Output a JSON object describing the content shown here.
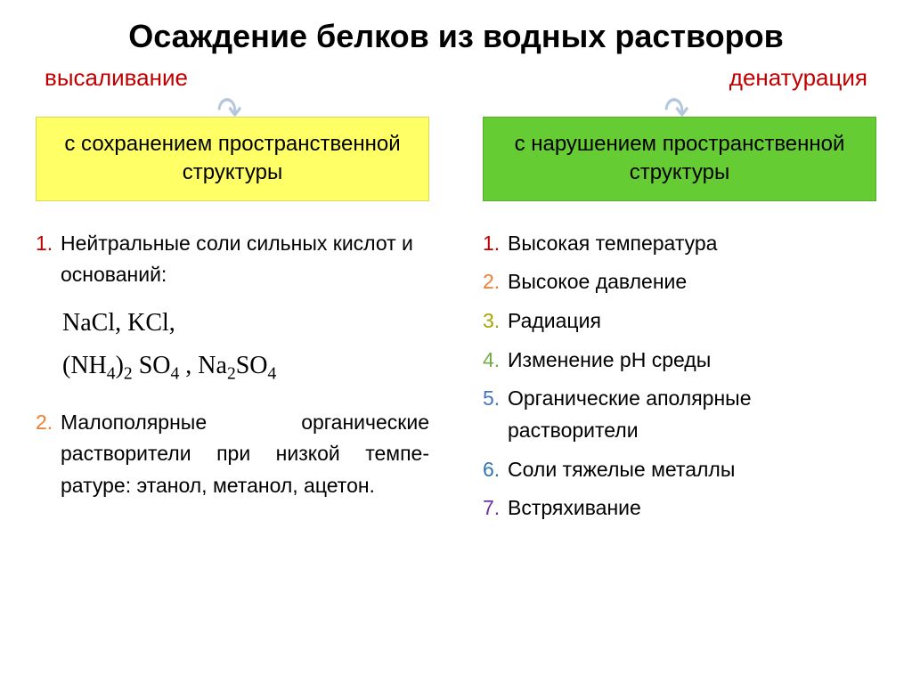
{
  "title": "Осаждение белков из водных растворов",
  "left": {
    "branch": "высаливание",
    "box": "с сохранением пространственной структуры",
    "items": [
      {
        "num": "1.",
        "num_color": "#c00000",
        "text": "Нейтральные соли сильных кислот и оснований:"
      },
      {
        "num": "2.",
        "num_color": "#ed7d31",
        "text": "Малополярные органические растворители при низкой темпе-ратуре: этанол, метанол, ацетон."
      }
    ],
    "formula_line1": "NaCl,  KCl,",
    "formula_nh4": "(NH",
    "formula_nh4_sub": "4",
    "formula_nh4_tail": ")",
    "formula_nh4_sub2": "2",
    "formula_so4": " SO",
    "formula_so4_sub": "4",
    "formula_sep": " ,  Na",
    "formula_na_sub": "2",
    "formula_so4b": "SO",
    "formula_so4b_sub": "4"
  },
  "right": {
    "branch": "денатурация",
    "box": "с нарушением пространственной структуры",
    "items": [
      {
        "num": "1.",
        "num_color": "#c00000",
        "text": "Высокая температура"
      },
      {
        "num": "2.",
        "num_color": "#ed7d31",
        "text": "Высокое давление"
      },
      {
        "num": "3.",
        "num_color": "#a6a600",
        "text": "Радиация"
      },
      {
        "num": "4.",
        "num_color": "#70ad47",
        "text": "Изменение рН среды"
      },
      {
        "num": "5.",
        "num_color": "#4472c4",
        "text": "Органические аполярные растворители"
      },
      {
        "num": "6.",
        "num_color": "#2e75b6",
        "text": "Соли тяжелые металлы"
      },
      {
        "num": "7.",
        "num_color": "#7030a0",
        "text": "Встряхивание"
      }
    ]
  },
  "box_colors": {
    "yellow": "#ffff66",
    "green": "#66cc33"
  },
  "arrow_color": "#b4c7dc"
}
